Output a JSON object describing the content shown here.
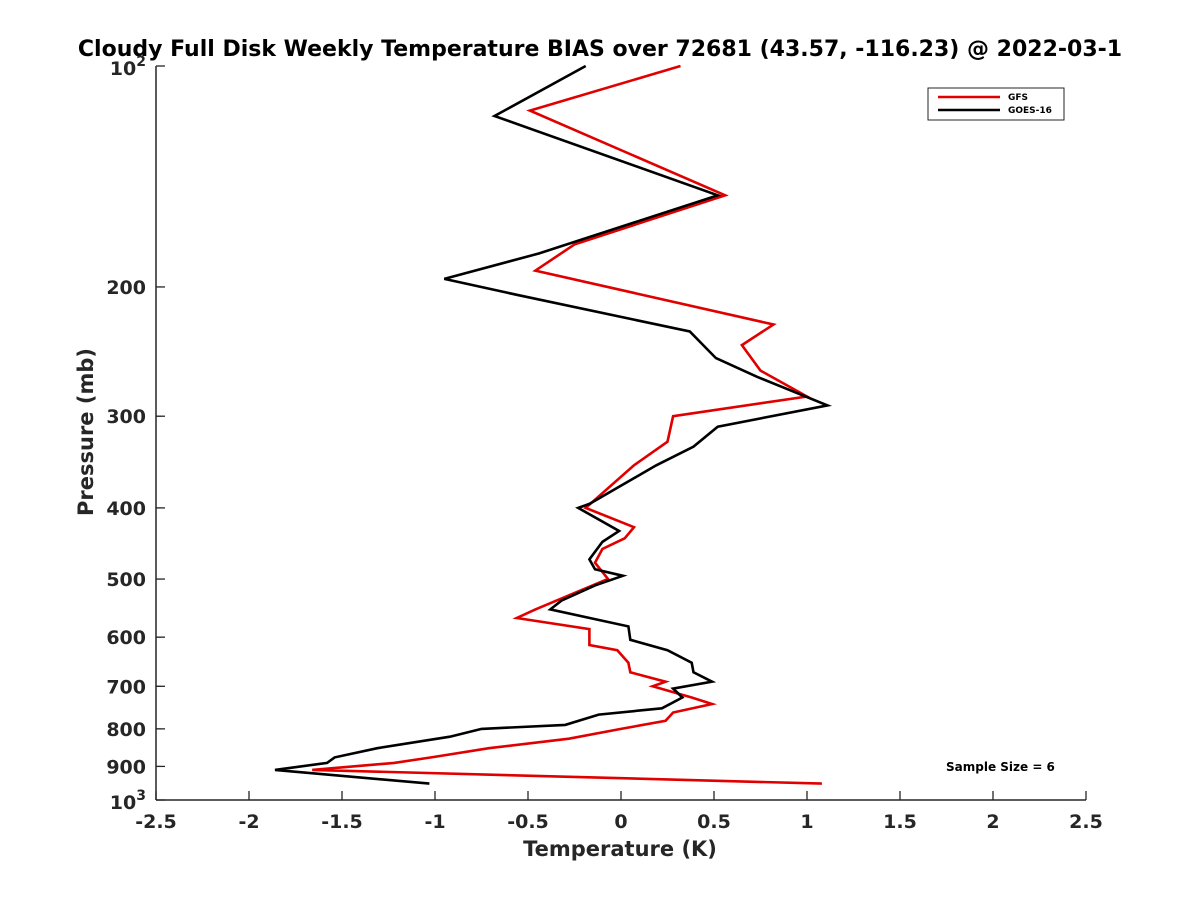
{
  "chart_data": {
    "type": "line",
    "title": "Cloudy Full Disk Weekly Temperature BIAS over 72681 (43.57, -116.23) @ 2022-03-1",
    "xlabel": "Temperature (K)",
    "ylabel": "Pressure (mb)",
    "xlim": [
      -2.5,
      2.5
    ],
    "ylim": [
      100,
      1000
    ],
    "y_scale": "log",
    "y_reversed": true,
    "x_ticks": [
      -2.5,
      -2,
      -1.5,
      -1,
      -0.5,
      0,
      0.5,
      1,
      1.5,
      2,
      2.5
    ],
    "x_tick_labels": [
      "-2.5",
      "-2",
      "-1.5",
      "-1",
      "-0.5",
      "0",
      "0.5",
      "1",
      "1.5",
      "2",
      "2.5"
    ],
    "y_ticks": [
      200,
      300,
      400,
      500,
      600,
      700,
      800,
      900
    ],
    "y_tick_labels": [
      "200",
      "300",
      "400",
      "500",
      "600",
      "700",
      "800",
      "900"
    ],
    "y_top_label": {
      "base": "10",
      "exp": "2"
    },
    "y_bottom_label": {
      "base": "10",
      "exp": "3"
    },
    "grid": false,
    "legend_position": "top-right",
    "annotation": "Sample Size = 6",
    "series": [
      {
        "name": "GFS",
        "color": "#e00000",
        "points": [
          [
            0.32,
            100
          ],
          [
            -0.49,
            115
          ],
          [
            0.56,
            150
          ],
          [
            -0.25,
            175
          ],
          [
            -0.46,
            190
          ],
          [
            0.82,
            225
          ],
          [
            0.65,
            240
          ],
          [
            0.75,
            260
          ],
          [
            1.0,
            282
          ],
          [
            0.28,
            300
          ],
          [
            0.25,
            325
          ],
          [
            0.07,
            350
          ],
          [
            -0.19,
            400
          ],
          [
            0.07,
            425
          ],
          [
            0.02,
            440
          ],
          [
            -0.1,
            455
          ],
          [
            -0.14,
            475
          ],
          [
            -0.07,
            500
          ],
          [
            -0.27,
            525
          ],
          [
            -0.46,
            550
          ],
          [
            -0.56,
            565
          ],
          [
            -0.17,
            585
          ],
          [
            -0.17,
            615
          ],
          [
            -0.02,
            625
          ],
          [
            0.04,
            650
          ],
          [
            0.05,
            670
          ],
          [
            0.24,
            690
          ],
          [
            0.17,
            700
          ],
          [
            0.38,
            725
          ],
          [
            0.49,
            740
          ],
          [
            0.28,
            760
          ],
          [
            0.24,
            780
          ],
          [
            0.0,
            800
          ],
          [
            -0.28,
            825
          ],
          [
            -0.71,
            850
          ],
          [
            -1.02,
            875
          ],
          [
            -1.22,
            890
          ],
          [
            -1.66,
            910
          ],
          [
            1.08,
            950
          ]
        ]
      },
      {
        "name": "GOES-16",
        "color": "#000000",
        "points": [
          [
            -0.19,
            100
          ],
          [
            -0.68,
            117
          ],
          [
            0.52,
            150
          ],
          [
            -0.44,
            180
          ],
          [
            -0.95,
            195
          ],
          [
            -0.56,
            205
          ],
          [
            0.37,
            230
          ],
          [
            0.51,
            250
          ],
          [
            0.73,
            265
          ],
          [
            1.11,
            290
          ],
          [
            0.52,
            310
          ],
          [
            0.39,
            330
          ],
          [
            0.19,
            350
          ],
          [
            -0.17,
            395
          ],
          [
            -0.23,
            400
          ],
          [
            -0.01,
            430
          ],
          [
            -0.1,
            445
          ],
          [
            -0.17,
            470
          ],
          [
            -0.14,
            485
          ],
          [
            0.01,
            495
          ],
          [
            -0.14,
            510
          ],
          [
            -0.32,
            535
          ],
          [
            -0.38,
            550
          ],
          [
            0.04,
            580
          ],
          [
            0.05,
            605
          ],
          [
            0.25,
            625
          ],
          [
            0.38,
            650
          ],
          [
            0.39,
            670
          ],
          [
            0.49,
            690
          ],
          [
            0.28,
            705
          ],
          [
            0.33,
            725
          ],
          [
            0.22,
            750
          ],
          [
            -0.12,
            765
          ],
          [
            -0.3,
            790
          ],
          [
            -0.75,
            800
          ],
          [
            -0.92,
            820
          ],
          [
            -1.31,
            850
          ],
          [
            -1.54,
            875
          ],
          [
            -1.58,
            890
          ],
          [
            -1.86,
            910
          ],
          [
            -1.03,
            950
          ]
        ]
      }
    ]
  }
}
